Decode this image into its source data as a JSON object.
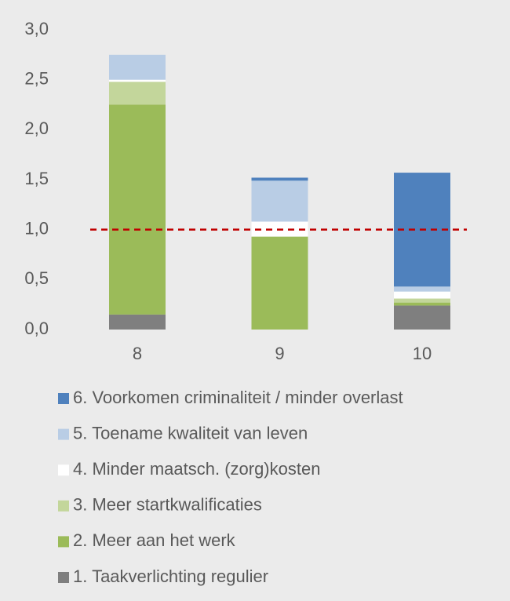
{
  "chart_data": {
    "type": "stacked_bar",
    "categories": [
      "8",
      "9",
      "10"
    ],
    "series": [
      {
        "name": "1. Taakverlichting regulier",
        "color": "#7f7f7f",
        "values": [
          0.15,
          0,
          0.24
        ]
      },
      {
        "name": "2. Meer aan het werk",
        "color": "#9bbb59",
        "values": [
          2.1,
          0.93,
          0.03
        ]
      },
      {
        "name": "3. Meer startkwalificaties",
        "color": "#c3d69b",
        "values": [
          0.23,
          0,
          0.04
        ]
      },
      {
        "name": "4. Minder maatsch. (zorg)kosten",
        "color": "#ffffff",
        "values": [
          0.02,
          0.15,
          0.07
        ]
      },
      {
        "name": "5. Toename kwaliteit van leven",
        "color": "#b9cde5",
        "values": [
          0.25,
          0.41,
          0.05
        ]
      },
      {
        "name": "6. Voorkomen criminaliteit / minder overlast",
        "color": "#4f81bd",
        "values": [
          0,
          0.03,
          1.14
        ]
      }
    ],
    "ylim": [
      0,
      3
    ],
    "yticks": [
      {
        "value": 0,
        "label": "0,0"
      },
      {
        "value": 0.5,
        "label": "0,5"
      },
      {
        "value": 1,
        "label": "1,0"
      },
      {
        "value": 1.5,
        "label": "1,5"
      },
      {
        "value": 2,
        "label": "2,0"
      },
      {
        "value": 2.5,
        "label": "2,5"
      },
      {
        "value": 3,
        "label": "3,0"
      }
    ],
    "reference_line": {
      "value": 1,
      "color": "#c00000"
    },
    "legend": "bottom"
  }
}
